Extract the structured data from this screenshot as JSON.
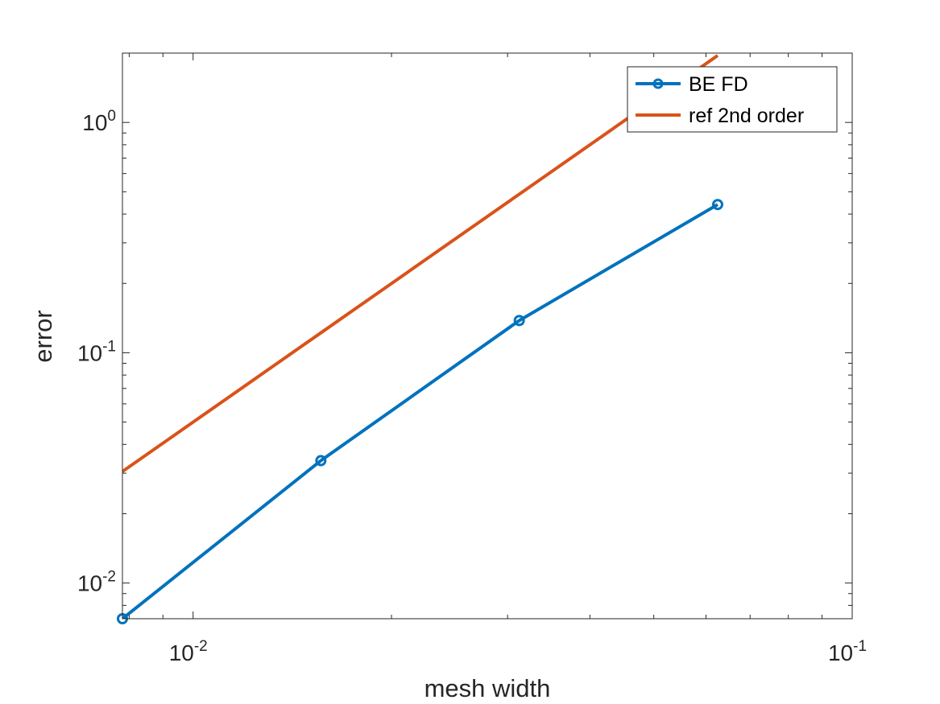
{
  "chart_data": {
    "type": "line",
    "x_scale": "log",
    "y_scale": "log",
    "xlabel": "mesh width",
    "ylabel": "error",
    "xlim": [
      0.0078125,
      0.1
    ],
    "ylim": [
      0.007,
      2.0
    ],
    "x_ticks": [
      {
        "value": 0.01,
        "base": "10",
        "exp": "-2"
      },
      {
        "value": 0.1,
        "base": "10",
        "exp": "-1"
      }
    ],
    "y_ticks": [
      {
        "value": 0.01,
        "base": "10",
        "exp": "-2"
      },
      {
        "value": 0.1,
        "base": "10",
        "exp": "-1"
      },
      {
        "value": 1,
        "base": "10",
        "exp": "0"
      }
    ],
    "grid": false,
    "box": true,
    "legend_position": "top-right",
    "series": [
      {
        "name": "BE FD",
        "color": "#0072BD",
        "marker": "circle",
        "x": [
          0.0078125,
          0.015625,
          0.03125,
          0.0625
        ],
        "y": [
          0.007,
          0.034,
          0.138,
          0.44
        ]
      },
      {
        "name": "ref 2nd order",
        "color": "#D95319",
        "marker": "none",
        "x": [
          0.0078125,
          0.015625,
          0.03125,
          0.0625
        ],
        "y": [
          0.0305,
          0.122,
          0.488,
          1.953
        ]
      }
    ]
  }
}
